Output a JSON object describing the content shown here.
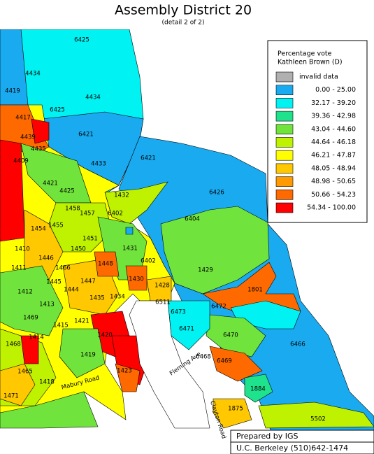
{
  "header": {
    "title": "Assembly District 20",
    "subtitle": "(detail 2 of 2)"
  },
  "legend": {
    "title_lines": [
      "Percentage vote",
      "Kathleen Brown (D)"
    ],
    "items": [
      {
        "label": "invalid data",
        "color": "#b0b0b0"
      },
      {
        "label": "0.00 - 25.00",
        "color": "#1aaaf0"
      },
      {
        "label": "32.17 - 39.20",
        "color": "#00f2f2"
      },
      {
        "label": "39.36 - 42.98",
        "color": "#1ee28c"
      },
      {
        "label": "43.04 - 44.60",
        "color": "#70e43c"
      },
      {
        "label": "44.64 - 46.18",
        "color": "#bef200"
      },
      {
        "label": "46.21 - 47.87",
        "color": "#ffff00"
      },
      {
        "label": "48.05 - 48.94",
        "color": "#ffc800"
      },
      {
        "label": "48.98 - 50.65",
        "color": "#ff9a00"
      },
      {
        "label": "50.66 - 54.23",
        "color": "#ff6a00"
      },
      {
        "label": "54.34 - 100.00",
        "color": "#ff0000"
      }
    ]
  },
  "labels": [
    "6425",
    "4434",
    "4419",
    "6425",
    "4434",
    "4417",
    "4439",
    "6421",
    "4433",
    "6421",
    "6426",
    "4435",
    "4409",
    "4421",
    "4425",
    "1432",
    "1458",
    "1457",
    "6402",
    "6404",
    "1454",
    "1455",
    "1451",
    "1450",
    "1410",
    "1446",
    "1431",
    "6402",
    "1411",
    "1466",
    "1448",
    "1447",
    "1429",
    "1412",
    "1445",
    "1444",
    "1430",
    "1428",
    "1801",
    "1413",
    "1435",
    "1434",
    "6511",
    "6472",
    "6473",
    "1415",
    "1421",
    "1469",
    "6471",
    "6470",
    "6466",
    "1414",
    "1420",
    "1468",
    "1419",
    "6469",
    "6468",
    "1465",
    "1418",
    "1423",
    "1884",
    "1471",
    "1875",
    "5502"
  ],
  "streets": [
    "Mabury Road",
    "Fleming Ave",
    "Clayton Road"
  ],
  "footer": {
    "line1": "Prepared by IGS",
    "line2": "U.C. Berkeley (510)642-1474"
  }
}
